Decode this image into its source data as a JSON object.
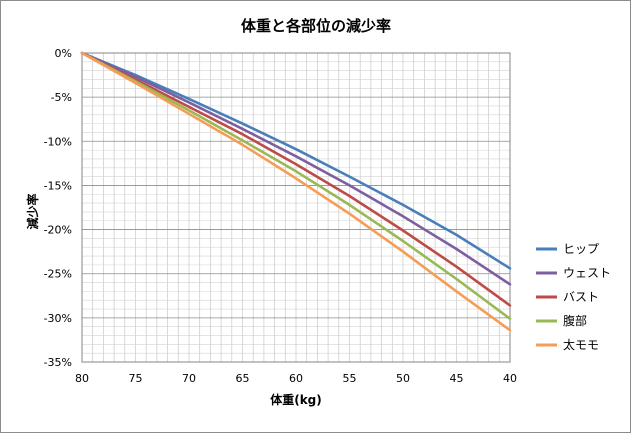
{
  "chart_data": {
    "type": "line",
    "title": "体重と各部位の減少率",
    "xlabel": "体重(kg)",
    "ylabel": "減少率",
    "x": [
      80,
      75,
      70,
      65,
      60,
      55,
      50,
      45,
      40
    ],
    "xlim": [
      80,
      40
    ],
    "x_reversed": true,
    "x_tick_labels": [
      "80",
      "75",
      "70",
      "65",
      "60",
      "55",
      "50",
      "45",
      "40"
    ],
    "ylim": [
      -35,
      0
    ],
    "y_tick_labels": [
      "0%",
      "-5%",
      "-10%",
      "-15%",
      "-20%",
      "-25%",
      "-30%",
      "-35%"
    ],
    "y_unit": "%",
    "grid": true,
    "legend_position": "right",
    "series": [
      {
        "name": "ヒップ",
        "color": "#4a7ebb",
        "values": [
          0,
          -2.5,
          -5.2,
          -8.0,
          -10.9,
          -14.0,
          -17.2,
          -20.6,
          -24.4
        ]
      },
      {
        "name": "ウェスト",
        "color": "#7d5fa0",
        "values": [
          0,
          -2.7,
          -5.6,
          -8.6,
          -11.7,
          -15.0,
          -18.5,
          -22.2,
          -26.2
        ]
      },
      {
        "name": "バスト",
        "color": "#be4b48",
        "values": [
          0,
          -3.0,
          -6.1,
          -9.2,
          -12.6,
          -16.2,
          -20.1,
          -24.2,
          -28.6
        ]
      },
      {
        "name": "腹部",
        "color": "#98b954",
        "values": [
          0,
          -3.2,
          -6.5,
          -9.9,
          -13.4,
          -17.2,
          -21.3,
          -25.6,
          -30.1
        ]
      },
      {
        "name": "太モモ",
        "color": "#f59d56",
        "values": [
          0,
          -3.4,
          -6.9,
          -10.4,
          -14.2,
          -18.2,
          -22.5,
          -27.0,
          -31.4
        ]
      }
    ]
  }
}
